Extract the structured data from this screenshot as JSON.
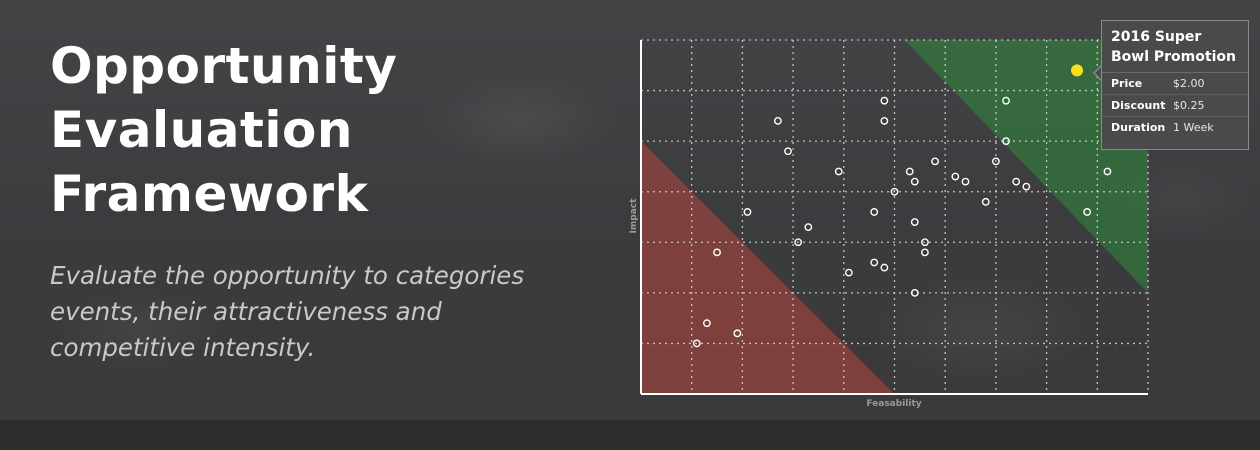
{
  "header": {
    "title": "Opportunity Evaluation Framework",
    "subtitle": "Evaluate the opportunity to categories events, their attractiveness and competitive intensity."
  },
  "colors": {
    "low_zone": "#b5463c",
    "high_zone": "#2f8a3a",
    "grid": "#d8d8d8",
    "axis": "#ffffff",
    "point": "#ffffff",
    "selected_point": "#f7e014"
  },
  "tooltip": {
    "title": "2016 Super Bowl Promotion",
    "rows": [
      {
        "label": "Price",
        "value": "$2.00"
      },
      {
        "label": "Discount",
        "value": "$0.25"
      },
      {
        "label": "Duration",
        "value": "1 Week"
      }
    ]
  },
  "chart_data": {
    "type": "scatter",
    "xlabel": "Feasability",
    "ylabel": "Impact",
    "xlim": [
      0,
      10
    ],
    "ylim": [
      0,
      7
    ],
    "grid": true,
    "regions": [
      {
        "name": "low",
        "color": "#b5463c",
        "polygon": [
          [
            0,
            0
          ],
          [
            0,
            5
          ],
          [
            5,
            0
          ]
        ]
      },
      {
        "name": "high",
        "color": "#2f8a3a",
        "polygon": [
          [
            5.2,
            7
          ],
          [
            10,
            7
          ],
          [
            10,
            2
          ]
        ]
      }
    ],
    "points": [
      {
        "x": 1.1,
        "y": 1.0
      },
      {
        "x": 1.3,
        "y": 1.4
      },
      {
        "x": 1.5,
        "y": 2.8
      },
      {
        "x": 1.9,
        "y": 1.2
      },
      {
        "x": 2.1,
        "y": 3.6
      },
      {
        "x": 2.7,
        "y": 5.4
      },
      {
        "x": 2.9,
        "y": 4.8
      },
      {
        "x": 3.1,
        "y": 3.0
      },
      {
        "x": 3.3,
        "y": 3.3
      },
      {
        "x": 3.9,
        "y": 4.4
      },
      {
        "x": 4.1,
        "y": 2.4
      },
      {
        "x": 4.6,
        "y": 3.6
      },
      {
        "x": 4.6,
        "y": 2.6
      },
      {
        "x": 4.8,
        "y": 5.8
      },
      {
        "x": 4.8,
        "y": 5.4
      },
      {
        "x": 4.8,
        "y": 2.5
      },
      {
        "x": 5.0,
        "y": 4.0
      },
      {
        "x": 5.3,
        "y": 4.4
      },
      {
        "x": 5.4,
        "y": 4.2
      },
      {
        "x": 5.4,
        "y": 3.4
      },
      {
        "x": 5.4,
        "y": 2.0
      },
      {
        "x": 5.6,
        "y": 3.0
      },
      {
        "x": 5.6,
        "y": 2.8
      },
      {
        "x": 5.8,
        "y": 4.6
      },
      {
        "x": 6.2,
        "y": 4.3
      },
      {
        "x": 6.4,
        "y": 4.2
      },
      {
        "x": 6.8,
        "y": 3.8
      },
      {
        "x": 7.0,
        "y": 4.6
      },
      {
        "x": 7.2,
        "y": 5.8
      },
      {
        "x": 7.2,
        "y": 5.0
      },
      {
        "x": 7.4,
        "y": 4.2
      },
      {
        "x": 7.6,
        "y": 4.1
      },
      {
        "x": 8.8,
        "y": 3.6
      },
      {
        "x": 9.2,
        "y": 4.4
      },
      {
        "x": 8.6,
        "y": 6.4,
        "selected": true
      }
    ]
  }
}
